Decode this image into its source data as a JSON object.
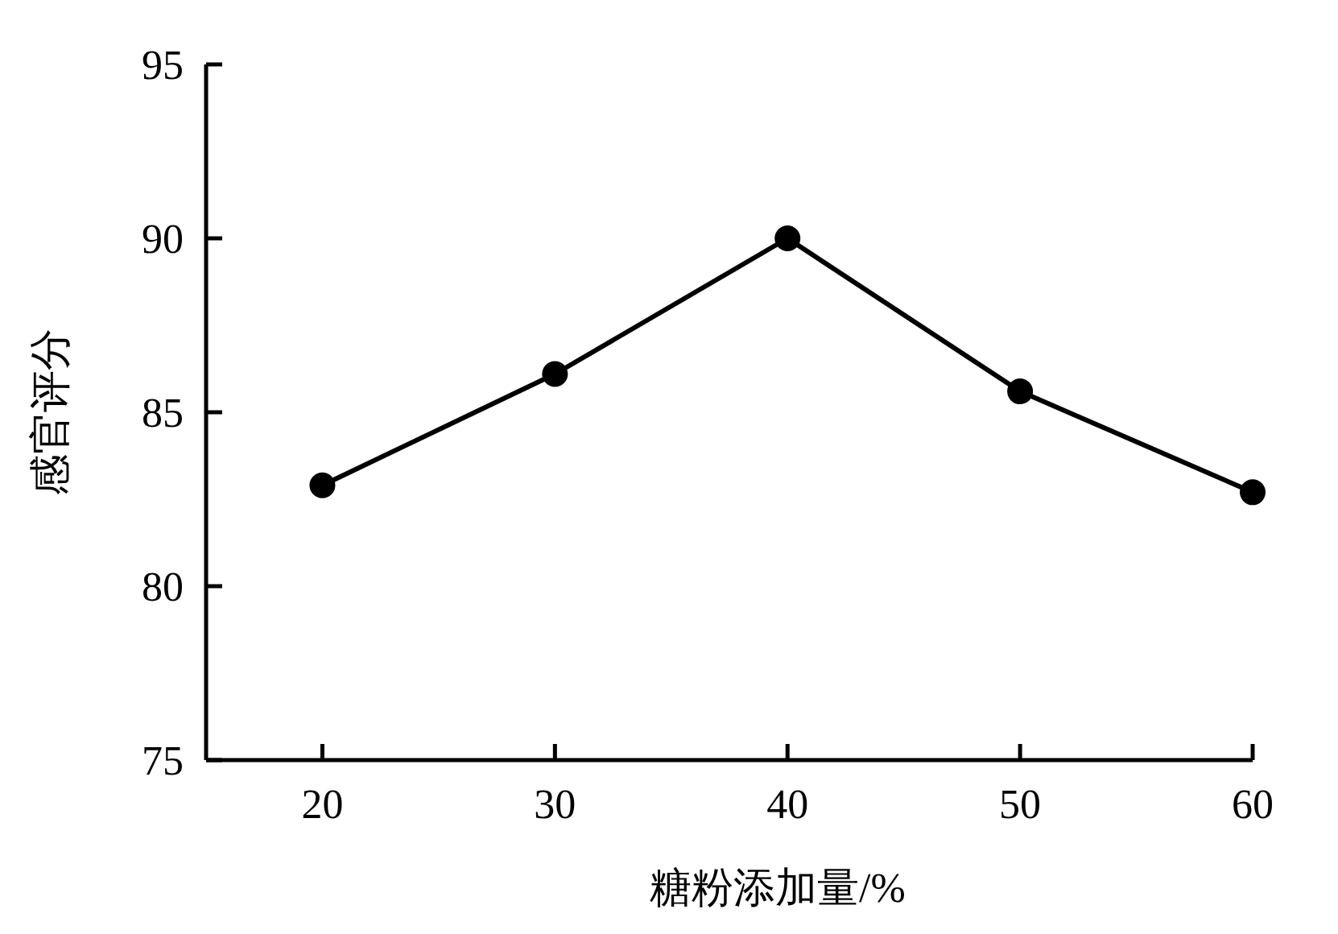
{
  "chart_data": {
    "type": "line",
    "xlabel": "糖粉添加量/%",
    "ylabel": "感官评分",
    "x": [
      20,
      30,
      40,
      50,
      60
    ],
    "series": [
      {
        "color": "#000000",
        "values": [
          82.9,
          86.1,
          90.0,
          85.6,
          82.7
        ]
      }
    ],
    "xlim": [
      15,
      60
    ],
    "ylim": [
      75,
      95
    ],
    "xticks": [
      20,
      30,
      40,
      50,
      60
    ],
    "yticks": [
      75,
      80,
      85,
      90,
      95
    ],
    "marker": "circle",
    "line_style": "solid"
  }
}
